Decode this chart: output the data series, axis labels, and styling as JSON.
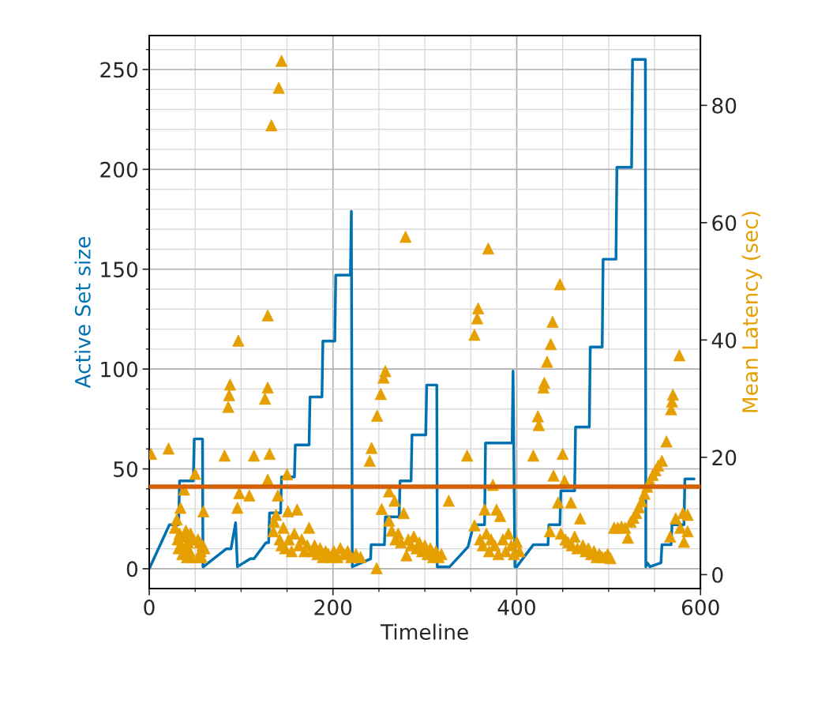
{
  "chart_data": {
    "type": "line",
    "xlabel": "Timeline",
    "ylabel": "Active Set size",
    "y2label": "Mean Latency (sec)",
    "xlim": [
      0,
      600
    ],
    "ylim": [
      -10,
      267
    ],
    "y2lim": [
      -2.4,
      91.9
    ],
    "xticks": [
      0,
      {
        "value": 50,
        "label": null
      },
      {
        "value": 100,
        "label": null
      },
      {
        "value": 150,
        "label": null
      },
      200,
      {
        "value": 250,
        "label": null
      },
      {
        "value": 300,
        "label": null
      },
      {
        "value": 350,
        "label": null
      },
      400,
      {
        "value": 450,
        "label": null
      },
      {
        "value": 500,
        "label": null
      },
      {
        "value": 550,
        "label": null
      },
      600
    ],
    "yticks": [
      0,
      {
        "value": 10,
        "label": null
      },
      {
        "value": 20,
        "label": null
      },
      {
        "value": 30,
        "label": null
      },
      {
        "value": 40,
        "label": null
      },
      50,
      {
        "value": 60,
        "label": null
      },
      {
        "value": 70,
        "label": null
      },
      {
        "value": 80,
        "label": null
      },
      {
        "value": 90,
        "label": null
      },
      100,
      {
        "value": 110,
        "label": null
      },
      {
        "value": 120,
        "label": null
      },
      {
        "value": 130,
        "label": null
      },
      {
        "value": 140,
        "label": null
      },
      150,
      {
        "value": 160,
        "label": null
      },
      {
        "value": 170,
        "label": null
      },
      {
        "value": 180,
        "label": null
      },
      {
        "value": 190,
        "label": null
      },
      200,
      {
        "value": 210,
        "label": null
      },
      {
        "value": 220,
        "label": null
      },
      {
        "value": 230,
        "label": null
      },
      {
        "value": 240,
        "label": null
      },
      250,
      {
        "value": 260,
        "label": null
      }
    ],
    "y2ticks": [
      0,
      20,
      40,
      60,
      80
    ],
    "grid": true,
    "series": [
      {
        "color": "#0072b2",
        "marker": "none",
        "line_style": "solid",
        "x": [
          0,
          22,
          32,
          33,
          48,
          49,
          58,
          58.5,
          59,
          84,
          89,
          94,
          96,
          110,
          114,
          127,
          130,
          131,
          143,
          144,
          158,
          159,
          174,
          175,
          188,
          189,
          202,
          203,
          219,
          220,
          221,
          241,
          241.5,
          256,
          257,
          272,
          273,
          285,
          286,
          301,
          302,
          313,
          313.5,
          327,
          347,
          353,
          365,
          366,
          395,
          396,
          398,
          400,
          418,
          434,
          435,
          447,
          448,
          463,
          464,
          479,
          480,
          493,
          494,
          508,
          509,
          525,
          526,
          540,
          540.5,
          542,
          545,
          557,
          558,
          568,
          569,
          582,
          583,
          593
        ],
        "values": [
          0,
          22,
          22,
          44,
          44,
          65,
          65,
          1,
          1,
          10,
          10,
          23,
          1,
          5,
          5,
          13,
          13,
          28,
          28,
          46,
          46,
          62,
          62,
          86,
          86,
          114,
          114,
          147,
          147,
          179,
          1,
          5,
          12,
          12,
          26,
          26,
          44,
          44,
          67,
          67,
          92,
          92,
          1,
          1,
          11,
          22,
          22,
          63,
          63,
          99,
          1,
          1,
          12,
          12,
          22,
          22,
          39,
          39,
          71,
          71,
          111,
          111,
          155,
          155,
          201,
          201,
          255,
          255,
          1,
          3,
          1,
          3,
          12,
          12,
          22,
          22,
          45,
          45
        ]
      },
      {
        "type": "scatter",
        "axis": "y2",
        "color": "#e69f00",
        "marker": "triangle",
        "x": [
          2,
          21,
          28,
          30,
          31,
          32,
          33,
          34,
          35,
          36,
          37,
          38,
          39,
          40,
          41,
          42,
          44,
          45,
          46,
          48,
          50,
          53,
          54,
          55,
          56,
          57,
          58,
          59,
          60,
          82,
          86,
          87,
          88,
          97,
          96,
          98,
          109,
          114,
          126,
          129,
          129,
          129,
          131,
          133,
          135,
          136,
          138,
          140,
          141,
          144,
          142,
          144,
          146,
          148,
          150,
          151,
          152,
          155,
          158,
          161,
          163,
          166,
          169,
          172,
          174,
          177,
          180,
          183,
          186,
          189,
          192,
          195,
          198,
          201,
          205,
          208,
          212,
          216,
          220,
          225,
          230,
          240,
          242,
          247.5,
          248,
          252,
          255,
          257,
          253,
          261,
          261,
          264,
          267,
          268,
          271,
          274,
          277,
          279,
          280,
          282,
          285,
          288,
          291,
          294,
          297,
          300,
          303,
          306,
          309,
          312,
          315,
          318,
          326,
          346,
          354,
          354,
          357,
          358,
          360,
          363,
          365,
          367,
          369,
          370,
          372,
          374,
          376,
          378,
          380,
          382,
          385,
          388,
          391,
          394,
          397,
          400,
          403,
          418,
          423,
          424,
          429,
          430,
          433,
          436,
          437,
          439,
          440,
          445,
          447,
          448,
          450,
          452,
          453,
          456,
          459,
          460,
          463,
          466,
          469,
          472,
          475,
          478,
          481,
          484,
          487,
          490,
          493,
          496,
          499,
          502,
          506,
          510,
          514,
          518,
          521,
          524,
          527,
          530,
          533,
          536,
          539,
          542,
          545,
          548,
          551,
          554,
          558,
          563,
          567,
          568,
          569,
          570,
          573,
          577,
          578,
          581,
          582,
          586,
          586
        ],
        "values": [
          20.6,
          21.5,
          8,
          9.4,
          6,
          4.5,
          7,
          11.4,
          5,
          3.5,
          6.5,
          14.5,
          4.5,
          7.5,
          3,
          5.5,
          4,
          7,
          3,
          6,
          17.2,
          6,
          3,
          5.5,
          4,
          3,
          5,
          10.8,
          4.5,
          20.3,
          28.6,
          30.6,
          32.4,
          39.9,
          11.4,
          13.9,
          13.5,
          20.3,
          30,
          44.2,
          31.9,
          16.2,
          20.6,
          76.6,
          7.4,
          9,
          10.2,
          13.5,
          83,
          87.6,
          6,
          5,
          8,
          4.5,
          17.1,
          10.8,
          6,
          4,
          7,
          11.1,
          5,
          6,
          4,
          5,
          8,
          4,
          5,
          3.5,
          4.5,
          3,
          4,
          3.5,
          3,
          4,
          3,
          4.5,
          3.5,
          4,
          3,
          3.5,
          3,
          19.4,
          21.6,
          1.1,
          27.1,
          30.8,
          33.6,
          34.7,
          11.2,
          14.2,
          9.2,
          7.5,
          12.6,
          6,
          7,
          5.5,
          10.5,
          57.6,
          3.3,
          6,
          5,
          6.5,
          4.5,
          5.5,
          4,
          5,
          3.5,
          4.5,
          3,
          4,
          3,
          3.5,
          12.6,
          20.3,
          40.9,
          8.4,
          43.7,
          45.4,
          6,
          5,
          11.1,
          7,
          55.6,
          4,
          6,
          15.3,
          5,
          11.1,
          3.5,
          10,
          6,
          4,
          7,
          5,
          3.5,
          5.6,
          4,
          20.3,
          27,
          25.5,
          31.9,
          32.7,
          36.3,
          7.4,
          39.3,
          43.1,
          16.9,
          12.3,
          49.5,
          7,
          20.6,
          16,
          6,
          5.5,
          12.3,
          5,
          6.5,
          4.5,
          9.6,
          5,
          4,
          4.5,
          3.5,
          4,
          3,
          3.5,
          3,
          3,
          3.5,
          2.8,
          8,
          8,
          8.2,
          8,
          6.3,
          9,
          9.7,
          10.5,
          11.5,
          12.5,
          13.8,
          15,
          16,
          17,
          17.8,
          18.6,
          19.4,
          22.7,
          6.5,
          28.2,
          29.5,
          30.7,
          9.6,
          37.4,
          8,
          10.5,
          5.6,
          10.2,
          7.4
        ]
      }
    ],
    "ref_lines": [
      {
        "axis": "y2",
        "value": 15,
        "label": null,
        "color": "#d55e00",
        "line_style": "solid"
      }
    ]
  }
}
